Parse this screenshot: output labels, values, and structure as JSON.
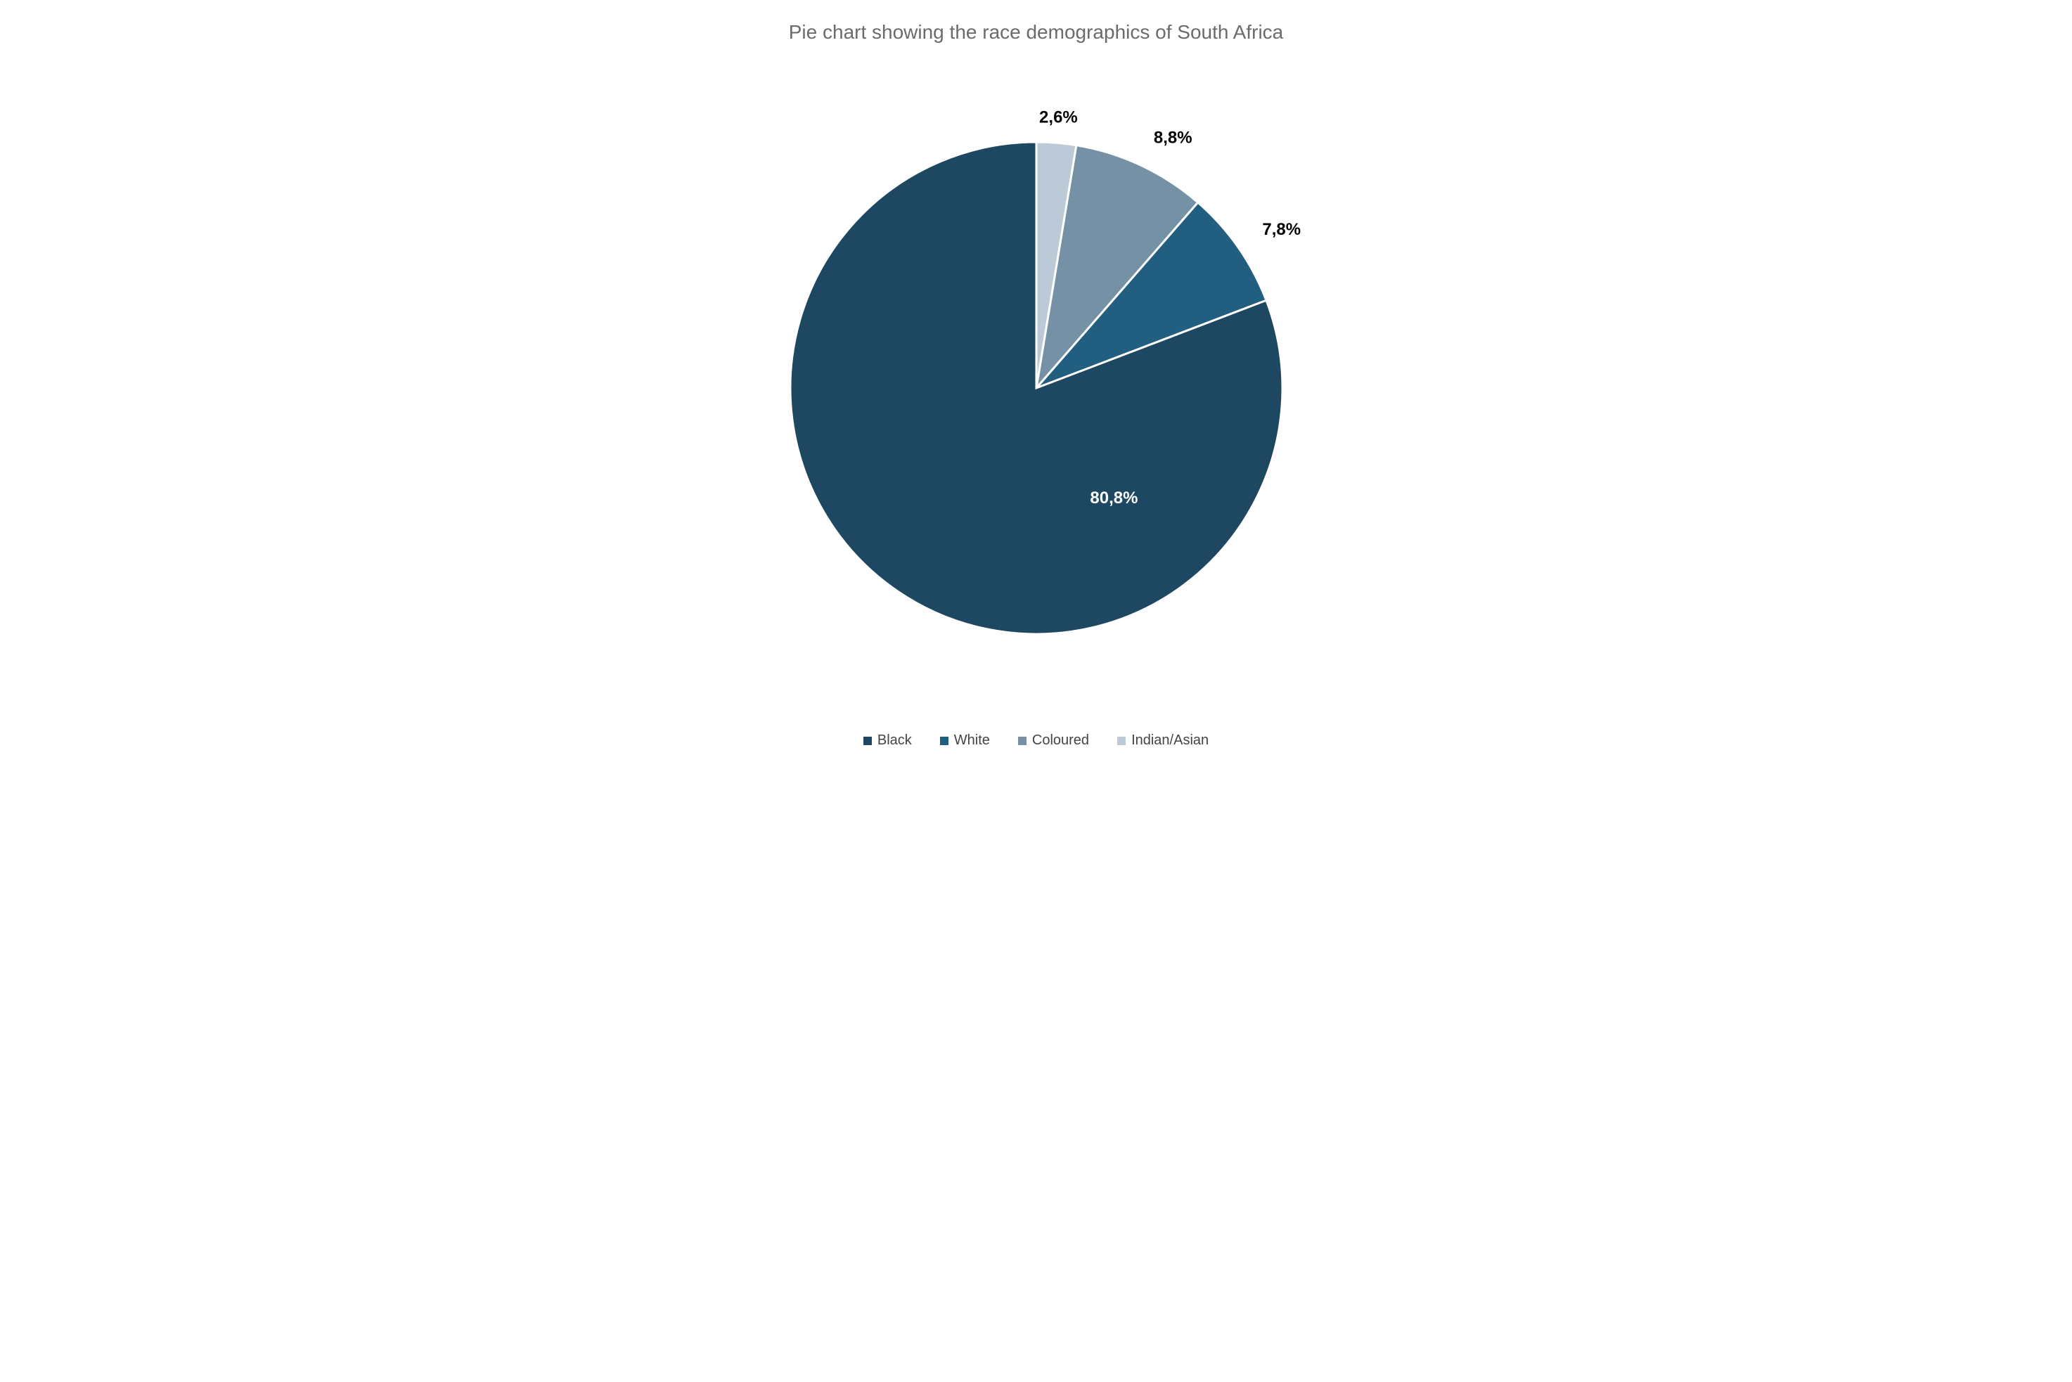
{
  "chart": {
    "type": "pie",
    "title": "Pie chart showing the race demographics of South Africa",
    "title_color": "#6b6b6b",
    "title_fontsize": 28,
    "title_fontweight": 400,
    "background_color": "#ffffff",
    "pie_radius": 350,
    "stroke_color": "#ffffff",
    "stroke_width": 3,
    "start_angle_deg": -90,
    "slices": [
      {
        "name": "Indian/Asian",
        "value": 2.6,
        "label": "2,6%",
        "color": "#bcc9d6",
        "label_color": "#000000",
        "label_outside": true,
        "label_radius_factor": 1.1
      },
      {
        "name": "Coloured",
        "value": 8.8,
        "label": "8,8%",
        "color": "#7591a6",
        "label_color": "#000000",
        "label_outside": true,
        "label_radius_factor": 1.12
      },
      {
        "name": "White",
        "value": 7.8,
        "label": "7,8%",
        "color": "#215e80",
        "label_color": "#000000",
        "label_outside": true,
        "label_radius_factor": 1.12
      },
      {
        "name": "Black",
        "value": 80.8,
        "label": "80,8%",
        "color": "#1e4761",
        "label_color": "#ffffff",
        "label_outside": false,
        "label_radius_factor": 0.55,
        "label_angle_deg": 55
      }
    ],
    "label_fontsize": 24,
    "label_fontweight": 700,
    "legend": {
      "position": "bottom",
      "items": [
        {
          "name": "Black",
          "color": "#1e4761"
        },
        {
          "name": "White",
          "color": "#215e80"
        },
        {
          "name": "Coloured",
          "color": "#7591a6"
        },
        {
          "name": "Indian/Asian",
          "color": "#bcc9d6"
        }
      ],
      "fontsize": 20,
      "text_color": "#444444",
      "swatch_size": 12
    }
  }
}
